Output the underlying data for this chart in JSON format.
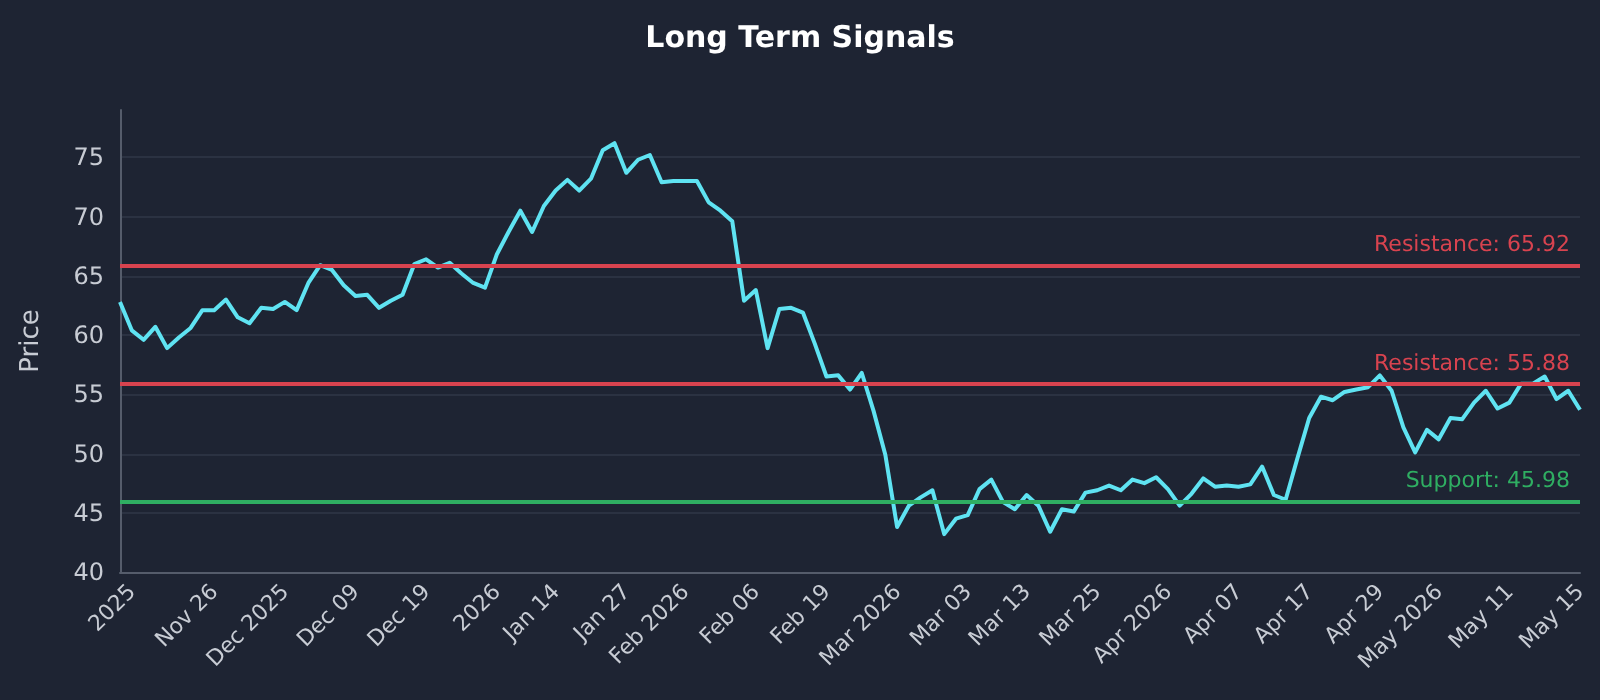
{
  "chart_data": {
    "type": "line",
    "title": "Long Term Signals",
    "ylabel": "Price",
    "categories": [
      null,
      "2025",
      null,
      null,
      null,
      null,
      null,
      null,
      "Nov 26",
      null,
      null,
      null,
      null,
      null,
      "Dec 2025",
      null,
      null,
      null,
      null,
      null,
      "Dec 09",
      null,
      null,
      null,
      null,
      null,
      "Dec 19",
      null,
      null,
      null,
      null,
      null,
      "2026",
      null,
      null,
      null,
      null,
      "Jan 14",
      null,
      null,
      null,
      null,
      null,
      "Jan 27",
      null,
      null,
      null,
      null,
      "Feb 2026",
      null,
      null,
      null,
      null,
      null,
      "Feb 06",
      null,
      null,
      null,
      null,
      null,
      "Feb 19",
      null,
      null,
      null,
      null,
      null,
      "Mar 2026",
      null,
      null,
      null,
      null,
      null,
      "Mar 03",
      null,
      null,
      null,
      null,
      "Mar 13",
      null,
      null,
      null,
      null,
      null,
      "Mar 25",
      null,
      null,
      null,
      null,
      null,
      "Apr 2026",
      null,
      null,
      null,
      null,
      null,
      "Apr 07",
      null,
      null,
      null,
      null,
      null,
      "Apr 17",
      null,
      null,
      null,
      null,
      null,
      "Apr 29",
      null,
      null,
      null,
      null,
      "May 2026",
      null,
      null,
      null,
      null,
      null,
      "May 11",
      null,
      null,
      null,
      null,
      null,
      "May 15"
    ],
    "series": [
      {
        "color": "#5fe3f2",
        "values": [
          62.8,
          60.4,
          59.6,
          60.7,
          58.9,
          59.8,
          60.6,
          62.1,
          62.1,
          63.0,
          61.5,
          61.0,
          62.3,
          62.2,
          62.8,
          62.1,
          64.4,
          65.9,
          65.5,
          64.2,
          63.3,
          63.4,
          62.3,
          62.9,
          63.4,
          66.0,
          66.4,
          65.7,
          66.1,
          65.2,
          64.4,
          64.0,
          66.8,
          68.7,
          70.5,
          68.7,
          70.9,
          72.2,
          73.1,
          72.2,
          73.2,
          75.6,
          76.2,
          73.7,
          74.8,
          75.2,
          72.9,
          73.0,
          73.0,
          73.0,
          71.2,
          70.5,
          69.6,
          62.9,
          63.8,
          58.9,
          62.2,
          62.3,
          61.9,
          59.3,
          56.5,
          56.6,
          55.4,
          56.8,
          53.6,
          49.9,
          43.8,
          45.6,
          46.3,
          46.9,
          43.2,
          44.5,
          44.8,
          47.0,
          47.8,
          45.9,
          45.3,
          46.5,
          45.6,
          43.4,
          45.3,
          45.1,
          46.7,
          46.9,
          47.3,
          46.9,
          47.8,
          47.5,
          48.0,
          47.0,
          45.6,
          46.6,
          47.9,
          47.2,
          47.3,
          47.2,
          47.4,
          48.9,
          46.5,
          46.1,
          49.6,
          53.0,
          54.8,
          54.5,
          55.2,
          55.4,
          55.6,
          56.6,
          55.3,
          52.2,
          50.1,
          52.0,
          51.2,
          53.0,
          52.9,
          54.3,
          55.3,
          53.8,
          54.3,
          55.9,
          55.9,
          56.5,
          54.6,
          55.3,
          53.7
        ]
      }
    ],
    "ylim": [
      40,
      79
    ],
    "yticks": [
      40,
      45,
      50,
      55,
      60,
      65,
      70,
      75
    ],
    "ref_lines": [
      {
        "axis": "y",
        "value": 65.92,
        "label": "Resistance: 65.92",
        "color": "#d8434f"
      },
      {
        "axis": "y",
        "value": 55.88,
        "label": "Resistance: 55.88",
        "color": "#d8434f"
      },
      {
        "axis": "y",
        "value": 45.98,
        "label": "Support: 45.98",
        "color": "#2fae62"
      }
    ],
    "grid": "y",
    "marker": "none",
    "line_style": "solid"
  }
}
